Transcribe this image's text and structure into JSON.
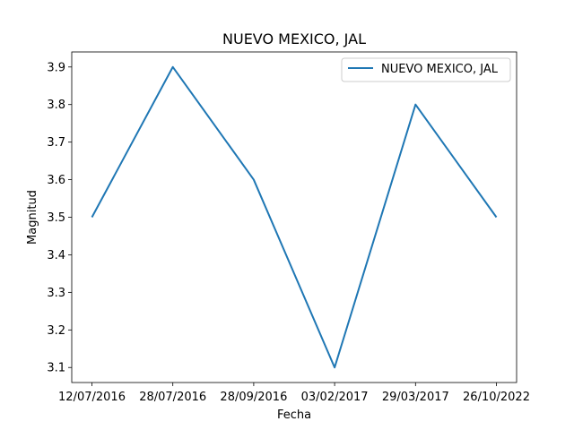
{
  "chart_data": {
    "type": "line",
    "title": "NUEVO MEXICO, JAL",
    "xlabel": "Fecha",
    "ylabel": "Magnitud",
    "categories": [
      "12/07/2016",
      "28/07/2016",
      "28/09/2016",
      "03/02/2017",
      "29/03/2017",
      "26/10/2022"
    ],
    "series": [
      {
        "name": "NUEVO MEXICO, JAL",
        "values": [
          3.5,
          3.9,
          3.6,
          3.1,
          3.8,
          3.5
        ],
        "color": "#1f77b4"
      }
    ],
    "y_ticks": [
      "3.1",
      "3.2",
      "3.3",
      "3.4",
      "3.5",
      "3.6",
      "3.7",
      "3.8",
      "3.9"
    ],
    "ylim": [
      3.06,
      3.94
    ],
    "grid": false,
    "legend_position": "upper right"
  }
}
